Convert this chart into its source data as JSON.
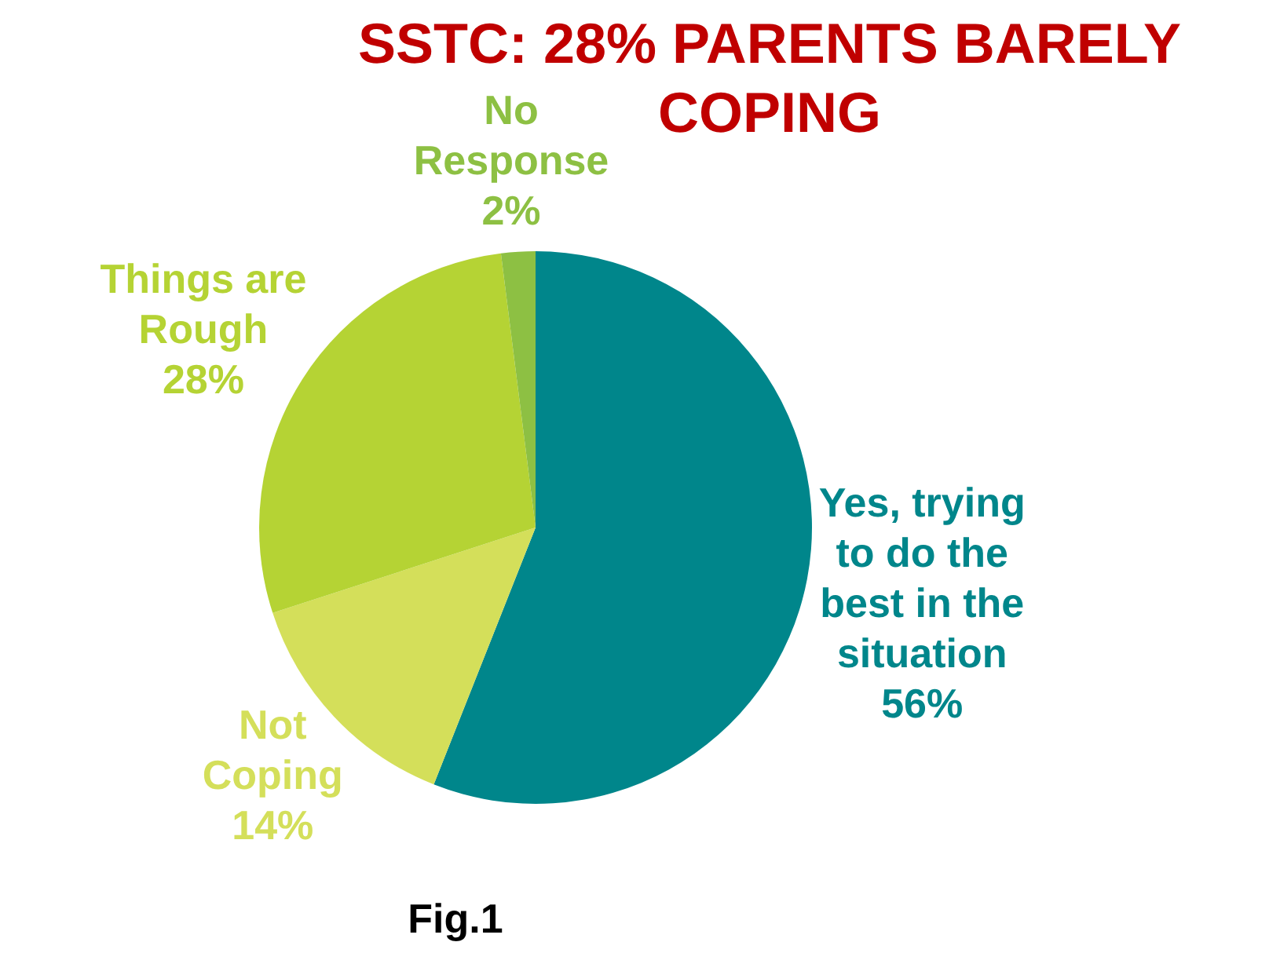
{
  "chart_data": {
    "type": "pie",
    "title": "SSTC: 28% PARENTS BARELY COPING",
    "categories": [
      "Yes, trying to do the best in the situation",
      "Not Coping",
      "Things are Rough",
      "No Response"
    ],
    "values": [
      56,
      14,
      28,
      2
    ],
    "value_labels": [
      "56%",
      "14%",
      "28%",
      "2%"
    ],
    "colors": [
      "#00868b",
      "#d4df5a",
      "#b5d334",
      "#8dc043"
    ],
    "legend": false,
    "annotations": [
      "Fig.1"
    ]
  }
}
